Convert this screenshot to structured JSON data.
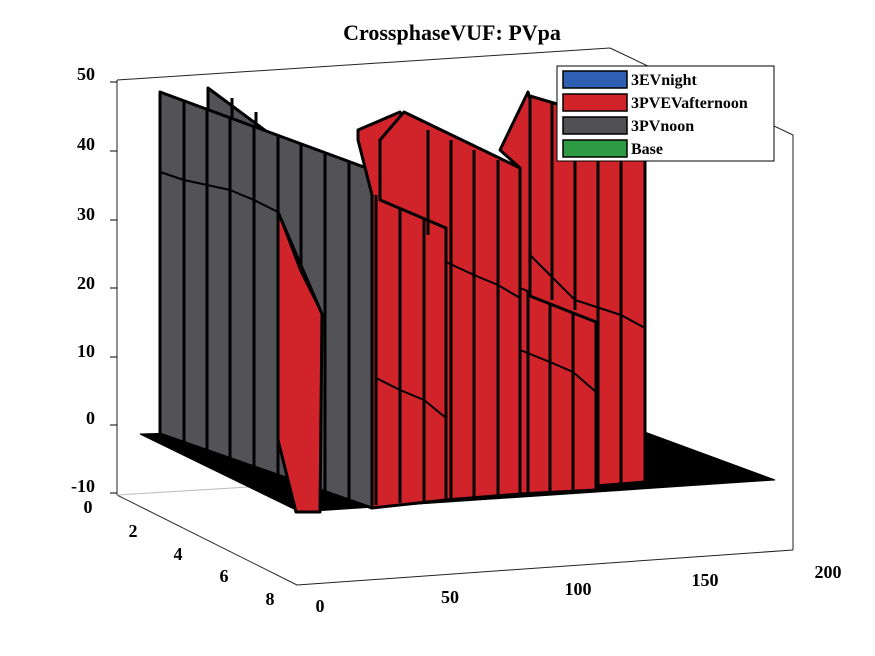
{
  "chart_data": {
    "type": "3d-bar-ribbon",
    "title": "CrossphaseVUF: PVpa",
    "xlabel": "",
    "ylabel": "",
    "zlabel": "",
    "x_ticks": [
      "0",
      "50",
      "100",
      "150",
      "200"
    ],
    "y_ticks": [
      "0",
      "2",
      "4",
      "6",
      "8"
    ],
    "z_ticks": [
      "50",
      "40",
      "30",
      "20",
      "10",
      "0",
      "-10"
    ],
    "xlim": [
      0,
      200
    ],
    "ylim": [
      0,
      8
    ],
    "zlim": [
      -10,
      50
    ],
    "grid": false,
    "legend_position": "top-right",
    "series": [
      {
        "name": "3EVnight",
        "color": "#2f5fb3",
        "values": []
      },
      {
        "name": "3PVEVafternoon",
        "color": "#d0232a",
        "approx_peak_values": [
          45,
          46,
          43,
          44,
          46
        ]
      },
      {
        "name": "3PVnoon",
        "color": "#505055",
        "approx_peak_values": [
          48,
          47
        ]
      },
      {
        "name": "Base",
        "color": "#2e9b44",
        "values": []
      }
    ]
  }
}
